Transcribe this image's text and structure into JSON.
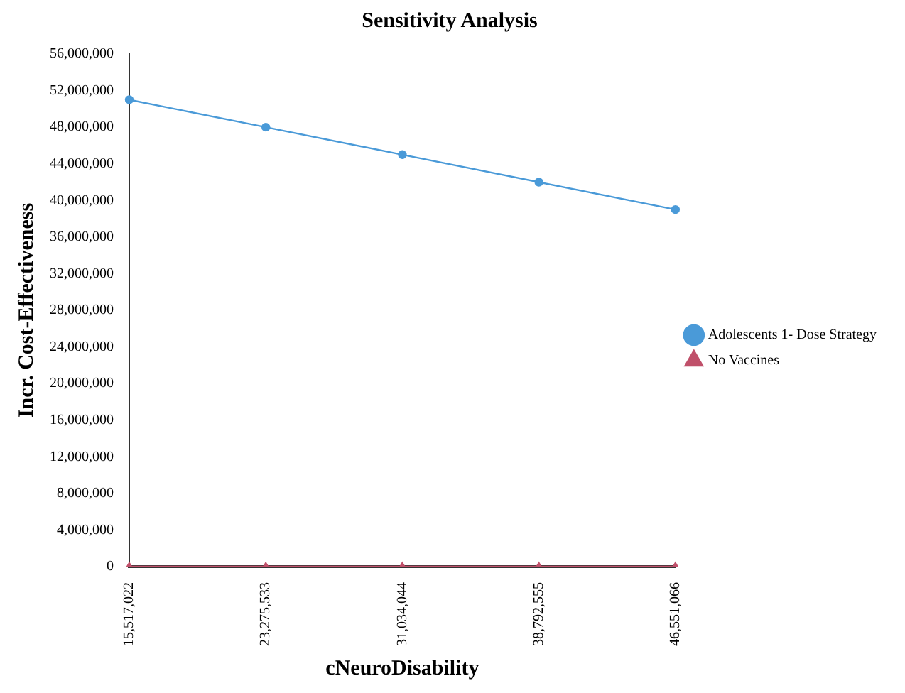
{
  "chart_data": {
    "type": "line",
    "title": "Sensitivity Analysis",
    "xlabel": "cNeuroDisability",
    "ylabel": "Incr. Cost-Effectiveness",
    "categories": [
      "15,517,022",
      "23,275,533",
      "31,034,044",
      "38,792,555",
      "46,551,066"
    ],
    "series": [
      {
        "name": "Adolescents 1- Dose Strategy",
        "color": "#4a9ad8",
        "marker": "circle",
        "values": [
          51000000,
          48000000,
          45000000,
          42000000,
          39000000
        ]
      },
      {
        "name": "No Vaccines",
        "color": "#c0506a",
        "marker": "triangle",
        "values": [
          0,
          0,
          0,
          0,
          0
        ]
      }
    ],
    "ylim": [
      0,
      56000000
    ],
    "yticks": [
      0,
      {
        "value": 4000000,
        "label": "4,000,000"
      },
      {
        "value": 8000000,
        "label": "8,000,000"
      },
      {
        "value": 12000000,
        "label": "12,000,000"
      },
      {
        "value": 16000000,
        "label": "16,000,000"
      },
      {
        "value": 20000000,
        "label": "20,000,000"
      },
      {
        "value": 24000000,
        "label": "24,000,000"
      },
      {
        "value": 28000000,
        "label": "28,000,000"
      },
      {
        "value": 32000000,
        "label": "32,000,000"
      },
      {
        "value": 36000000,
        "label": "36,000,000"
      },
      {
        "value": 40000000,
        "label": "40,000,000"
      },
      {
        "value": 44000000,
        "label": "44,000,000"
      },
      {
        "value": 48000000,
        "label": "48,000,000"
      },
      {
        "value": 52000000,
        "label": "52,000,000"
      },
      {
        "value": 56000000,
        "label": "56,000,000"
      }
    ],
    "grid": false,
    "legend": "right",
    "line_style": "solid"
  }
}
